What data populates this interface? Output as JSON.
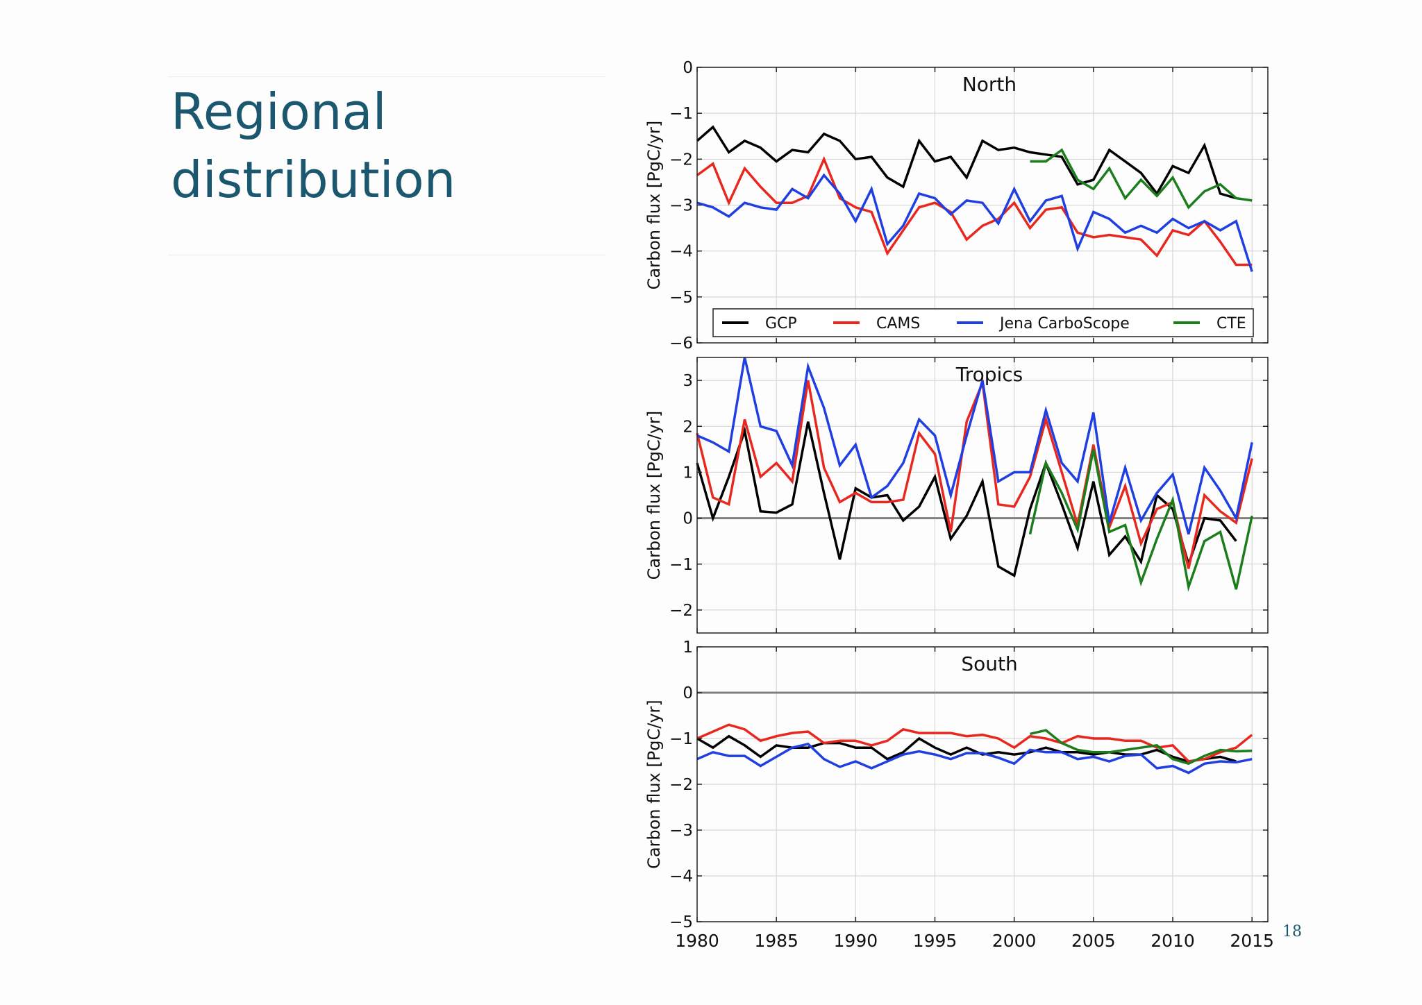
{
  "slide": {
    "title_lines": [
      "Regional",
      "distribution"
    ],
    "page_number": "18",
    "title_color": "#1b5870"
  },
  "chart_data": [
    {
      "type": "line",
      "title": "North",
      "ylabel": "Carbon flux [PgC/yr]",
      "xlim": [
        1980,
        2016
      ],
      "ylim": [
        -6,
        0
      ],
      "yticks": [
        0,
        -1,
        -2,
        -3,
        -4,
        -5,
        -6
      ],
      "xticks": [
        1980,
        1985,
        1990,
        1995,
        2000,
        2005,
        2010,
        2015
      ],
      "zero_line": false,
      "grid": true,
      "legend": "bottom",
      "series": [
        {
          "name": "GCP",
          "color": "#000000",
          "x": [
            1980,
            1981,
            1982,
            1983,
            1984,
            1985,
            1986,
            1987,
            1988,
            1989,
            1990,
            1991,
            1992,
            1993,
            1994,
            1995,
            1996,
            1997,
            1998,
            1999,
            2000,
            2001,
            2002,
            2003,
            2004,
            2005,
            2006,
            2007,
            2008,
            2009,
            2010,
            2011,
            2012,
            2013,
            2014
          ],
          "y": [
            -1.6,
            -1.3,
            -1.85,
            -1.6,
            -1.75,
            -2.05,
            -1.8,
            -1.85,
            -1.45,
            -1.6,
            -2.0,
            -1.95,
            -2.4,
            -2.6,
            -1.6,
            -2.05,
            -1.95,
            -2.4,
            -1.6,
            -1.8,
            -1.75,
            -1.85,
            -1.9,
            -1.95,
            -2.55,
            -2.45,
            -1.8,
            -2.05,
            -2.3,
            -2.75,
            -2.15,
            -2.3,
            -1.7,
            -2.75,
            -2.85
          ]
        },
        {
          "name": "CAMS",
          "color": "#e8281e",
          "x": [
            1980,
            1981,
            1982,
            1983,
            1984,
            1985,
            1986,
            1987,
            1988,
            1989,
            1990,
            1991,
            1992,
            1993,
            1994,
            1995,
            1996,
            1997,
            1998,
            1999,
            2000,
            2001,
            2002,
            2003,
            2004,
            2005,
            2006,
            2007,
            2008,
            2009,
            2010,
            2011,
            2012,
            2013,
            2014,
            2015
          ],
          "y": [
            -2.35,
            -2.1,
            -2.95,
            -2.2,
            -2.6,
            -2.95,
            -2.95,
            -2.8,
            -2.0,
            -2.85,
            -3.05,
            -3.15,
            -4.05,
            -3.55,
            -3.05,
            -2.95,
            -3.15,
            -3.75,
            -3.45,
            -3.3,
            -2.95,
            -3.5,
            -3.1,
            -3.05,
            -3.6,
            -3.7,
            -3.65,
            -3.7,
            -3.75,
            -4.1,
            -3.55,
            -3.65,
            -3.35,
            -3.8,
            -4.3,
            -4.3
          ]
        },
        {
          "name": "Jena CarboScope",
          "color": "#1f3fe0",
          "x": [
            1980,
            1981,
            1982,
            1983,
            1984,
            1985,
            1986,
            1987,
            1988,
            1989,
            1990,
            1991,
            1992,
            1993,
            1994,
            1995,
            1996,
            1997,
            1998,
            1999,
            2000,
            2001,
            2002,
            2003,
            2004,
            2005,
            2006,
            2007,
            2008,
            2009,
            2010,
            2011,
            2012,
            2013,
            2014,
            2015
          ],
          "y": [
            -2.95,
            -3.05,
            -3.25,
            -2.95,
            -3.05,
            -3.1,
            -2.65,
            -2.85,
            -2.35,
            -2.75,
            -3.35,
            -2.65,
            -3.85,
            -3.45,
            -2.75,
            -2.85,
            -3.2,
            -2.9,
            -2.95,
            -3.4,
            -2.65,
            -3.35,
            -2.9,
            -2.8,
            -3.95,
            -3.15,
            -3.3,
            -3.6,
            -3.45,
            -3.6,
            -3.3,
            -3.5,
            -3.35,
            -3.55,
            -3.35,
            -4.45
          ]
        },
        {
          "name": "CTE",
          "color": "#1c7d1c",
          "x": [
            2001,
            2002,
            2003,
            2004,
            2005,
            2006,
            2007,
            2008,
            2009,
            2010,
            2011,
            2012,
            2013,
            2014,
            2015
          ],
          "y": [
            -2.05,
            -2.05,
            -1.8,
            -2.45,
            -2.65,
            -2.2,
            -2.85,
            -2.45,
            -2.8,
            -2.4,
            -3.05,
            -2.7,
            -2.55,
            -2.85,
            -2.9
          ]
        }
      ]
    },
    {
      "type": "line",
      "title": "Tropics",
      "ylabel": "Carbon flux [PgC/yr]",
      "xlim": [
        1980,
        2016
      ],
      "ylim": [
        -2.5,
        3.5
      ],
      "yticks": [
        3,
        2,
        1,
        0,
        -1,
        -2
      ],
      "xticks": [
        1980,
        1985,
        1990,
        1995,
        2000,
        2005,
        2010,
        2015
      ],
      "zero_line": true,
      "grid": true,
      "series": [
        {
          "name": "GCP",
          "color": "#000000",
          "x": [
            1980,
            1981,
            1982,
            1983,
            1984,
            1985,
            1986,
            1987,
            1988,
            1989,
            1990,
            1991,
            1992,
            1993,
            1994,
            1995,
            1996,
            1997,
            1998,
            1999,
            2000,
            2001,
            2002,
            2003,
            2004,
            2005,
            2006,
            2007,
            2008,
            2009,
            2010,
            2011,
            2012,
            2013,
            2014
          ],
          "y": [
            1.2,
            0.0,
            0.9,
            1.9,
            0.15,
            0.12,
            0.3,
            2.1,
            0.55,
            -0.9,
            0.65,
            0.45,
            0.5,
            -0.05,
            0.25,
            0.9,
            -0.45,
            0.05,
            0.8,
            -1.05,
            -1.25,
            0.2,
            1.2,
            0.3,
            -0.65,
            0.8,
            -0.8,
            -0.4,
            -0.95,
            0.5,
            0.2,
            -1.0,
            0.0,
            -0.05,
            -0.5
          ]
        },
        {
          "name": "CAMS",
          "color": "#e8281e",
          "x": [
            1980,
            1981,
            1982,
            1983,
            1984,
            1985,
            1986,
            1987,
            1988,
            1989,
            1990,
            1991,
            1992,
            1993,
            1994,
            1995,
            1996,
            1997,
            1998,
            1999,
            2000,
            2001,
            2002,
            2003,
            2004,
            2005,
            2006,
            2007,
            2008,
            2009,
            2010,
            2011,
            2012,
            2013,
            2014,
            2015
          ],
          "y": [
            1.85,
            0.45,
            0.3,
            2.15,
            0.9,
            1.2,
            0.8,
            3.0,
            1.1,
            0.35,
            0.55,
            0.35,
            0.35,
            0.4,
            1.85,
            1.4,
            -0.3,
            2.1,
            2.95,
            0.3,
            0.25,
            0.9,
            2.15,
            1.0,
            -0.15,
            1.6,
            -0.2,
            0.7,
            -0.55,
            0.2,
            0.35,
            -1.1,
            0.5,
            0.15,
            -0.1,
            1.3
          ]
        },
        {
          "name": "Jena CarboScope",
          "color": "#1f3fe0",
          "x": [
            1980,
            1981,
            1982,
            1983,
            1984,
            1985,
            1986,
            1987,
            1988,
            1989,
            1990,
            1991,
            1992,
            1993,
            1994,
            1995,
            1996,
            1997,
            1998,
            1999,
            2000,
            2001,
            2002,
            2003,
            2004,
            2005,
            2006,
            2007,
            2008,
            2009,
            2010,
            2011,
            2012,
            2013,
            2014,
            2015
          ],
          "y": [
            1.8,
            1.65,
            1.45,
            3.5,
            2.0,
            1.9,
            1.15,
            3.3,
            2.4,
            1.15,
            1.6,
            0.45,
            0.7,
            1.2,
            2.15,
            1.8,
            0.5,
            1.8,
            3.0,
            0.8,
            1.0,
            1.0,
            2.35,
            1.2,
            0.8,
            2.3,
            -0.1,
            1.1,
            -0.05,
            0.55,
            0.95,
            -0.35,
            1.1,
            0.6,
            0.0,
            1.65
          ]
        },
        {
          "name": "CTE",
          "color": "#1c7d1c",
          "x": [
            2001,
            2002,
            2003,
            2004,
            2005,
            2006,
            2007,
            2008,
            2009,
            2010,
            2011,
            2012,
            2013,
            2014,
            2015
          ],
          "y": [
            -0.35,
            1.2,
            0.55,
            -0.25,
            1.5,
            -0.3,
            -0.15,
            -1.4,
            -0.45,
            0.4,
            -1.5,
            -0.5,
            -0.3,
            -1.55,
            0.05
          ]
        }
      ]
    },
    {
      "type": "line",
      "title": "South",
      "ylabel": "Carbon flux [PgC/yr]",
      "xlim": [
        1980,
        2016
      ],
      "ylim": [
        -5,
        1
      ],
      "yticks": [
        1,
        0,
        -1,
        -2,
        -3,
        -4,
        -5
      ],
      "xticks": [
        1980,
        1985,
        1990,
        1995,
        2000,
        2005,
        2010,
        2015
      ],
      "xtick_labels": [
        "1980",
        "1985",
        "1990",
        "1995",
        "2000",
        "2005",
        "2010",
        "2015"
      ],
      "zero_line": true,
      "grid": true,
      "series": [
        {
          "name": "GCP",
          "color": "#000000",
          "x": [
            1980,
            1981,
            1982,
            1983,
            1984,
            1985,
            1986,
            1987,
            1988,
            1989,
            1990,
            1991,
            1992,
            1993,
            1994,
            1995,
            1996,
            1997,
            1998,
            1999,
            2000,
            2001,
            2002,
            2003,
            2004,
            2005,
            2006,
            2007,
            2008,
            2009,
            2010,
            2011,
            2012,
            2013,
            2014
          ],
          "y": [
            -1.0,
            -1.2,
            -0.95,
            -1.15,
            -1.4,
            -1.15,
            -1.2,
            -1.2,
            -1.1,
            -1.1,
            -1.2,
            -1.2,
            -1.45,
            -1.3,
            -1.0,
            -1.2,
            -1.35,
            -1.2,
            -1.35,
            -1.3,
            -1.35,
            -1.3,
            -1.2,
            -1.3,
            -1.3,
            -1.35,
            -1.3,
            -1.35,
            -1.35,
            -1.25,
            -1.4,
            -1.5,
            -1.45,
            -1.4,
            -1.5
          ]
        },
        {
          "name": "CAMS",
          "color": "#e8281e",
          "x": [
            1980,
            1981,
            1982,
            1983,
            1984,
            1985,
            1986,
            1987,
            1988,
            1989,
            1990,
            1991,
            1992,
            1993,
            1994,
            1995,
            1996,
            1997,
            1998,
            1999,
            2000,
            2001,
            2002,
            2003,
            2004,
            2005,
            2006,
            2007,
            2008,
            2009,
            2010,
            2011,
            2012,
            2013,
            2014,
            2015
          ],
          "y": [
            -1.0,
            -0.85,
            -0.7,
            -0.8,
            -1.05,
            -0.95,
            -0.88,
            -0.85,
            -1.1,
            -1.05,
            -1.05,
            -1.15,
            -1.05,
            -0.8,
            -0.88,
            -0.88,
            -0.88,
            -0.95,
            -0.92,
            -1.0,
            -1.2,
            -0.95,
            -1.0,
            -1.1,
            -0.95,
            -1.0,
            -1.0,
            -1.05,
            -1.05,
            -1.2,
            -1.15,
            -1.5,
            -1.45,
            -1.3,
            -1.2,
            -0.92
          ]
        },
        {
          "name": "Jena CarboScope",
          "color": "#1f3fe0",
          "x": [
            1980,
            1981,
            1982,
            1983,
            1984,
            1985,
            1986,
            1987,
            1988,
            1989,
            1990,
            1991,
            1992,
            1993,
            1994,
            1995,
            1996,
            1997,
            1998,
            1999,
            2000,
            2001,
            2002,
            2003,
            2004,
            2005,
            2006,
            2007,
            2008,
            2009,
            2010,
            2011,
            2012,
            2013,
            2014,
            2015
          ],
          "y": [
            -1.45,
            -1.3,
            -1.38,
            -1.38,
            -1.6,
            -1.4,
            -1.2,
            -1.12,
            -1.45,
            -1.62,
            -1.5,
            -1.65,
            -1.5,
            -1.35,
            -1.28,
            -1.35,
            -1.45,
            -1.32,
            -1.32,
            -1.42,
            -1.55,
            -1.25,
            -1.3,
            -1.3,
            -1.45,
            -1.4,
            -1.5,
            -1.38,
            -1.35,
            -1.65,
            -1.6,
            -1.75,
            -1.55,
            -1.5,
            -1.52,
            -1.45
          ]
        },
        {
          "name": "CTE",
          "color": "#1c7d1c",
          "x": [
            2001,
            2002,
            2003,
            2004,
            2005,
            2006,
            2007,
            2008,
            2009,
            2010,
            2011,
            2012,
            2013,
            2014,
            2015
          ],
          "y": [
            -0.9,
            -0.82,
            -1.1,
            -1.25,
            -1.3,
            -1.3,
            -1.25,
            -1.2,
            -1.15,
            -1.45,
            -1.55,
            -1.38,
            -1.25,
            -1.28,
            -1.27
          ]
        }
      ]
    }
  ]
}
